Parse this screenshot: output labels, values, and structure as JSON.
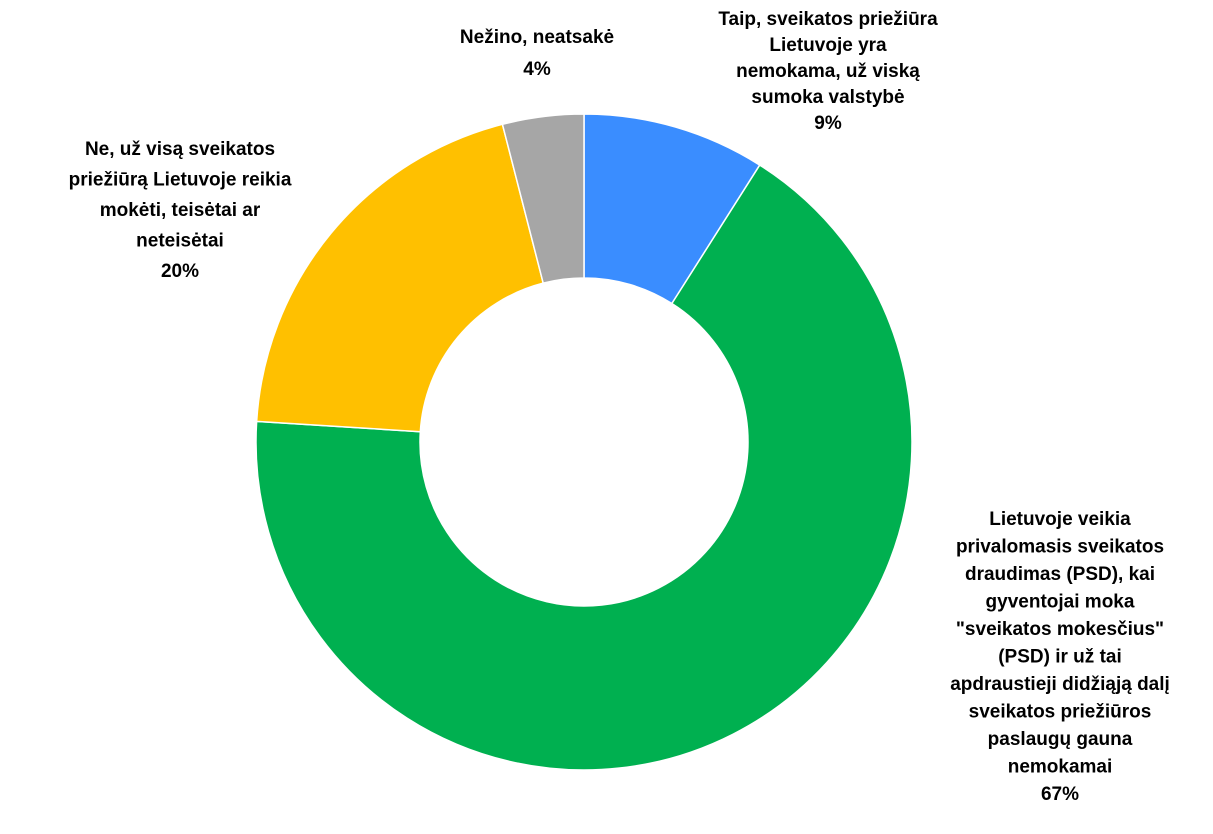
{
  "chart_data": {
    "type": "donut",
    "categories": [
      [
        "Taip, sveikatos priežiūra",
        "Lietuvoje yra",
        "nemokama, už viską",
        "sumoka valstybė"
      ],
      [
        "Lietuvoje veikia",
        "privalomasis sveikatos",
        "draudimas (PSD), kai",
        "gyventojai moka",
        "\"sveikatos mokesčius\"",
        "(PSD) ir už tai",
        "apdraustieji didžiąją dalį",
        "sveikatos priežiūros",
        "paslaugų gauna",
        "nemokamai"
      ],
      [
        "Ne, už visą sveikatos",
        "priežiūrą Lietuvoje reikia",
        "mokėti, teisėtai ar",
        "neteisėtai"
      ],
      [
        "Nežino, neatsakė"
      ]
    ],
    "values": [
      9,
      67,
      20,
      4
    ],
    "value_labels": [
      "9%",
      "67%",
      "20%",
      "4%"
    ],
    "colors": [
      "#3a8dff",
      "#00b050",
      "#ffc000",
      "#a6a6a6"
    ]
  }
}
